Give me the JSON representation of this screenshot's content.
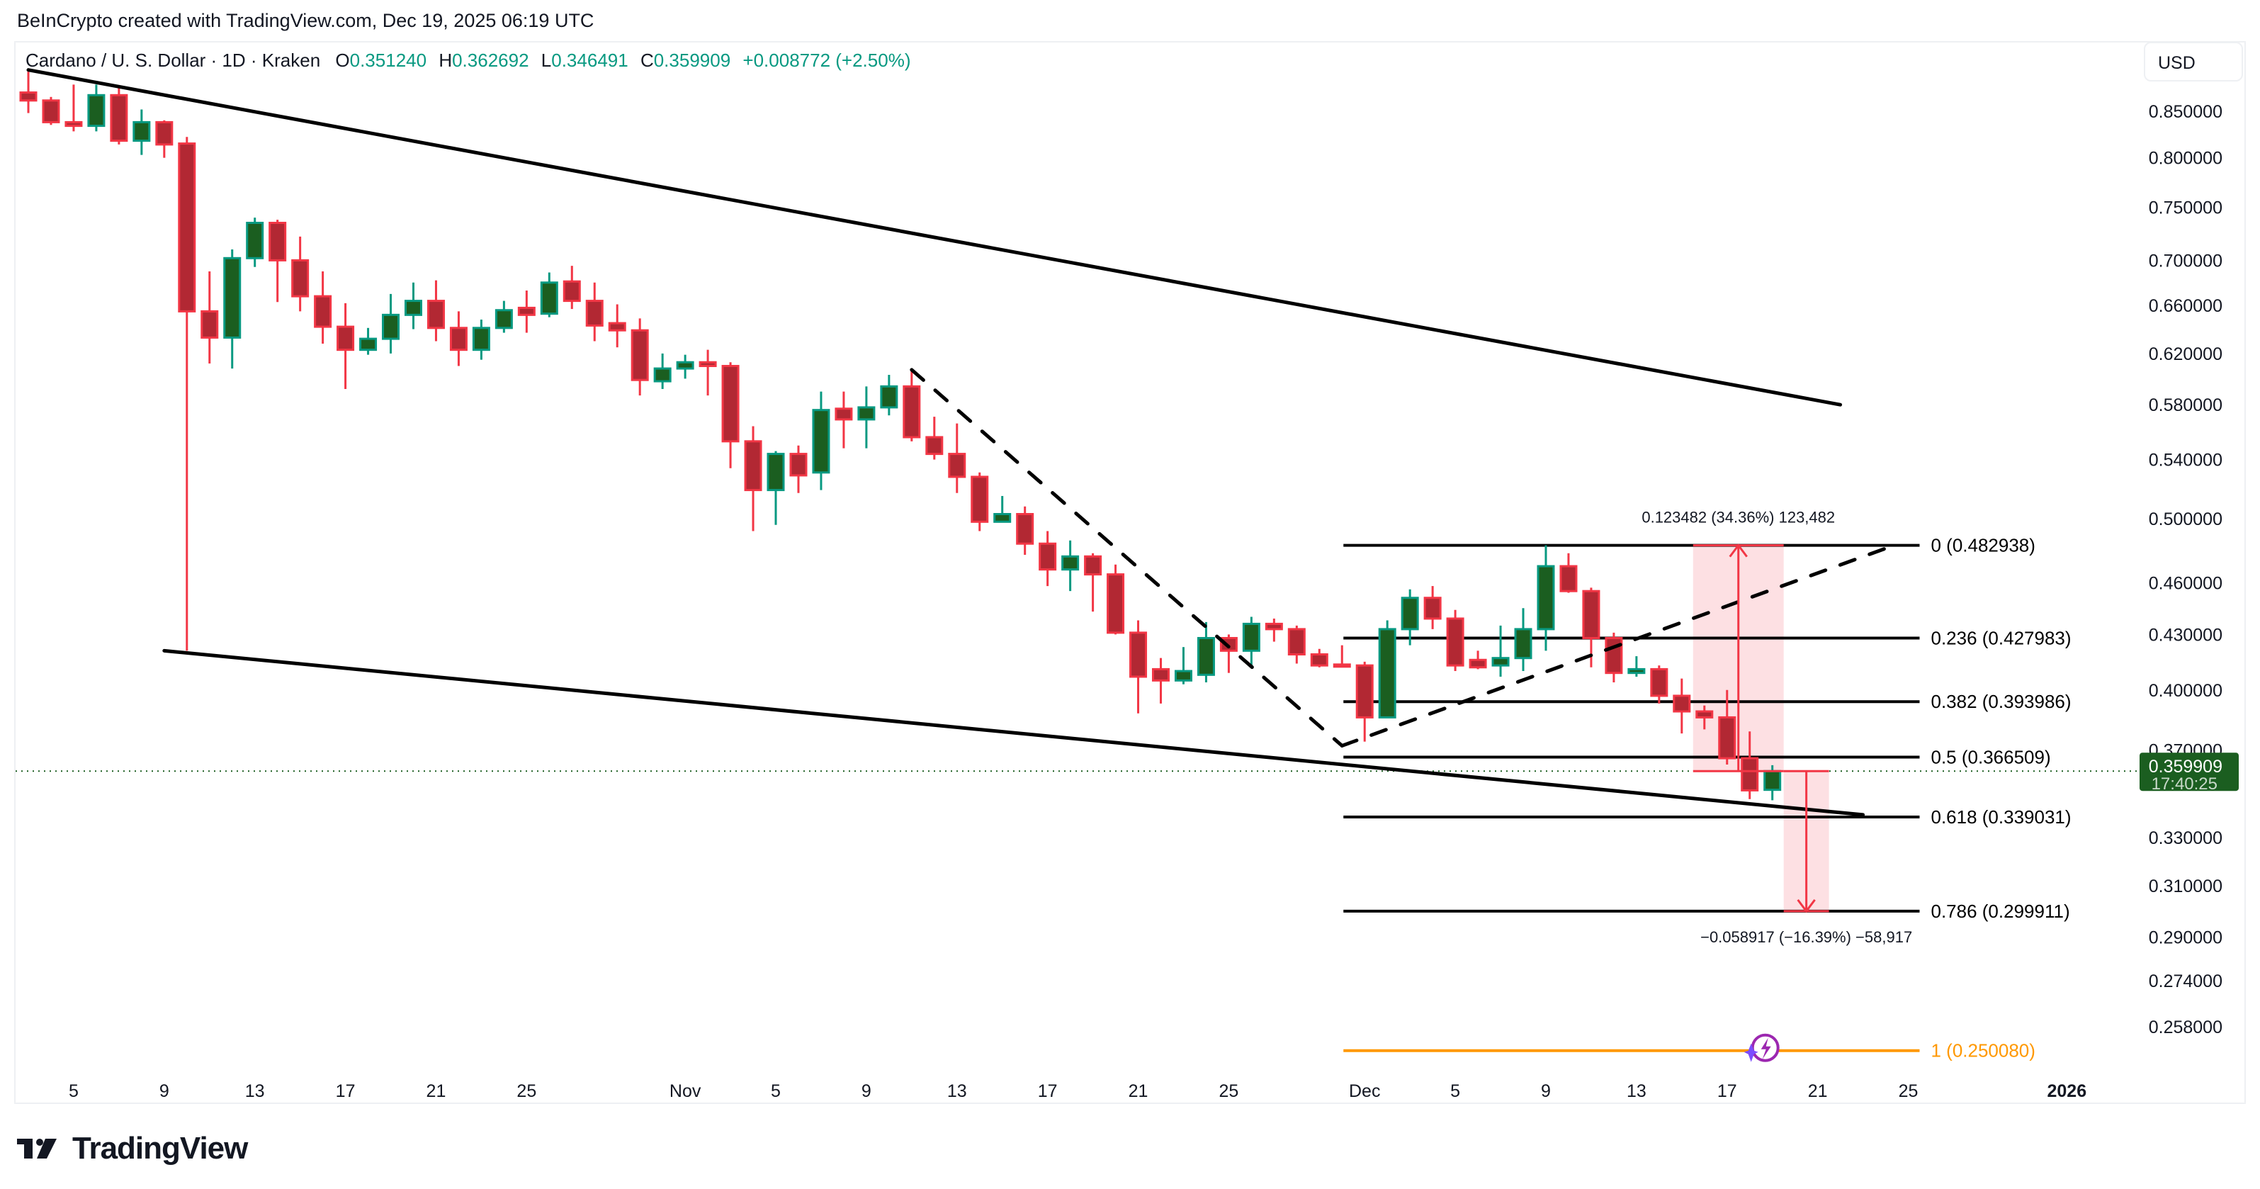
{
  "caption": "BeInCrypto created with TradingView.com, Dec 19, 2025 06:19 UTC",
  "legend": {
    "symbol": "Cardano / U. S. Dollar · 1D · Kraken",
    "o_label": "O",
    "o": "0.351240",
    "h_label": "H",
    "h": "0.362692",
    "l_label": "L",
    "l": "0.346491",
    "c_label": "C",
    "c": "0.359909",
    "change": "+0.008772 (+2.50%)"
  },
  "currency_button": "USD",
  "price_axis": {
    "ticks": [
      "0.850000",
      "0.800000",
      "0.750000",
      "0.700000",
      "0.660000",
      "0.620000",
      "0.580000",
      "0.540000",
      "0.500000",
      "0.460000",
      "0.430000",
      "0.400000",
      "0.370000",
      "0.330000",
      "0.310000",
      "0.290000",
      "0.274000",
      "0.258000"
    ],
    "current_price": "0.359909",
    "countdown": "17:40:25"
  },
  "time_axis": {
    "ticks": [
      {
        "label": "5",
        "day": 2
      },
      {
        "label": "9",
        "day": 6
      },
      {
        "label": "13",
        "day": 10
      },
      {
        "label": "17",
        "day": 14
      },
      {
        "label": "21",
        "day": 18
      },
      {
        "label": "25",
        "day": 22
      },
      {
        "label": "Nov",
        "day": 29
      },
      {
        "label": "5",
        "day": 33
      },
      {
        "label": "9",
        "day": 37
      },
      {
        "label": "13",
        "day": 41
      },
      {
        "label": "17",
        "day": 45
      },
      {
        "label": "21",
        "day": 49
      },
      {
        "label": "25",
        "day": 53
      },
      {
        "label": "Dec",
        "day": 59
      },
      {
        "label": "5",
        "day": 63
      },
      {
        "label": "9",
        "day": 67
      },
      {
        "label": "13",
        "day": 71
      },
      {
        "label": "17",
        "day": 75
      },
      {
        "label": "21",
        "day": 79
      },
      {
        "label": "25",
        "day": 83
      },
      {
        "label": "2026",
        "day": 90,
        "bold": true
      }
    ]
  },
  "fib_levels": [
    {
      "ratio": "0",
      "price": 0.482938,
      "label": "0 (0.482938)",
      "color": "#000000"
    },
    {
      "ratio": "0.236",
      "price": 0.427983,
      "label": "0.236 (0.427983)",
      "color": "#000000"
    },
    {
      "ratio": "0.382",
      "price": 0.393986,
      "label": "0.382 (0.393986)",
      "color": "#000000"
    },
    {
      "ratio": "0.5",
      "price": 0.366509,
      "label": "0.5 (0.366509)",
      "color": "#000000"
    },
    {
      "ratio": "0.618",
      "price": 0.339031,
      "label": "0.618 (0.339031)",
      "color": "#000000"
    },
    {
      "ratio": "0.786",
      "price": 0.299911,
      "label": "0.786 (0.299911)",
      "color": "#000000"
    },
    {
      "ratio": "1",
      "price": 0.25008,
      "label": "1 (0.250080)",
      "color": "#ff9800"
    }
  ],
  "measures": [
    {
      "label": "0.123482 (34.36%) 123,482",
      "from": 0.359909,
      "to": 0.482938
    },
    {
      "label": "−0.058917 (−16.39%) −58,917",
      "from": 0.359909,
      "to": 0.299911
    }
  ],
  "colors": {
    "up_body": "#1b5e20",
    "up_border": "#089981",
    "down_body": "#b22833",
    "down_border": "#f23645",
    "fib_one": "#ff9800",
    "measure_fill": "#fde0e3",
    "measure_line": "#f23645",
    "price_tag": "#1b5e20"
  },
  "branding": {
    "logo_text": "TradingView"
  },
  "chart_data": {
    "type": "candlestick",
    "title": "Cardano / U. S. Dollar · 1D · Kraken",
    "xlabel": "",
    "ylabel": "USD",
    "y_scale": "log",
    "ylim": [
      0.245,
      0.9
    ],
    "grid": false,
    "start_date": "2025-10-03",
    "candles": [
      {
        "d": "Oct 3",
        "o": 0.871,
        "h": 0.895,
        "l": 0.848,
        "c": 0.862
      },
      {
        "d": "Oct 4",
        "o": 0.862,
        "h": 0.866,
        "l": 0.835,
        "c": 0.838
      },
      {
        "d": "Oct 5",
        "o": 0.838,
        "h": 0.88,
        "l": 0.828,
        "c": 0.834
      },
      {
        "d": "Oct 6",
        "o": 0.834,
        "h": 0.88,
        "l": 0.828,
        "c": 0.868
      },
      {
        "d": "Oct 7",
        "o": 0.868,
        "h": 0.878,
        "l": 0.814,
        "c": 0.818
      },
      {
        "d": "Oct 8",
        "o": 0.818,
        "h": 0.852,
        "l": 0.803,
        "c": 0.838
      },
      {
        "d": "Oct 9",
        "o": 0.838,
        "h": 0.84,
        "l": 0.8,
        "c": 0.814
      },
      {
        "d": "Oct 10",
        "o": 0.815,
        "h": 0.822,
        "l": 0.421,
        "c": 0.655
      },
      {
        "d": "Oct 11",
        "o": 0.655,
        "h": 0.69,
        "l": 0.612,
        "c": 0.633
      },
      {
        "d": "Oct 12",
        "o": 0.633,
        "h": 0.71,
        "l": 0.608,
        "c": 0.702
      },
      {
        "d": "Oct 13",
        "o": 0.702,
        "h": 0.74,
        "l": 0.694,
        "c": 0.735
      },
      {
        "d": "Oct 14",
        "o": 0.735,
        "h": 0.738,
        "l": 0.663,
        "c": 0.7
      },
      {
        "d": "Oct 15",
        "o": 0.7,
        "h": 0.722,
        "l": 0.655,
        "c": 0.668
      },
      {
        "d": "Oct 16",
        "o": 0.668,
        "h": 0.69,
        "l": 0.628,
        "c": 0.642
      },
      {
        "d": "Oct 17",
        "o": 0.642,
        "h": 0.662,
        "l": 0.592,
        "c": 0.623
      },
      {
        "d": "Oct 18",
        "o": 0.623,
        "h": 0.641,
        "l": 0.619,
        "c": 0.632
      },
      {
        "d": "Oct 19",
        "o": 0.632,
        "h": 0.67,
        "l": 0.62,
        "c": 0.652
      },
      {
        "d": "Oct 20",
        "o": 0.652,
        "h": 0.68,
        "l": 0.64,
        "c": 0.664
      },
      {
        "d": "Oct 21",
        "o": 0.664,
        "h": 0.682,
        "l": 0.63,
        "c": 0.641
      },
      {
        "d": "Oct 22",
        "o": 0.641,
        "h": 0.655,
        "l": 0.61,
        "c": 0.623
      },
      {
        "d": "Oct 23",
        "o": 0.623,
        "h": 0.648,
        "l": 0.615,
        "c": 0.641
      },
      {
        "d": "Oct 24",
        "o": 0.641,
        "h": 0.664,
        "l": 0.637,
        "c": 0.656
      },
      {
        "d": "Oct 25",
        "o": 0.658,
        "h": 0.673,
        "l": 0.637,
        "c": 0.652
      },
      {
        "d": "Oct 26",
        "o": 0.653,
        "h": 0.689,
        "l": 0.65,
        "c": 0.68
      },
      {
        "d": "Oct 27",
        "o": 0.681,
        "h": 0.695,
        "l": 0.657,
        "c": 0.664
      },
      {
        "d": "Oct 28",
        "o": 0.664,
        "h": 0.68,
        "l": 0.63,
        "c": 0.643
      },
      {
        "d": "Oct 29",
        "o": 0.645,
        "h": 0.661,
        "l": 0.625,
        "c": 0.639
      },
      {
        "d": "Oct 30",
        "o": 0.639,
        "h": 0.649,
        "l": 0.587,
        "c": 0.599
      },
      {
        "d": "Oct 31",
        "o": 0.598,
        "h": 0.62,
        "l": 0.592,
        "c": 0.608
      },
      {
        "d": "Nov 1",
        "o": 0.608,
        "h": 0.619,
        "l": 0.6,
        "c": 0.613
      },
      {
        "d": "Nov 2",
        "o": 0.613,
        "h": 0.623,
        "l": 0.587,
        "c": 0.61
      },
      {
        "d": "Nov 3",
        "o": 0.61,
        "h": 0.613,
        "l": 0.534,
        "c": 0.553
      },
      {
        "d": "Nov 4",
        "o": 0.553,
        "h": 0.564,
        "l": 0.492,
        "c": 0.519
      },
      {
        "d": "Nov 5",
        "o": 0.519,
        "h": 0.546,
        "l": 0.496,
        "c": 0.544
      },
      {
        "d": "Nov 6",
        "o": 0.544,
        "h": 0.55,
        "l": 0.517,
        "c": 0.529
      },
      {
        "d": "Nov 7",
        "o": 0.531,
        "h": 0.59,
        "l": 0.519,
        "c": 0.576
      },
      {
        "d": "Nov 8",
        "o": 0.577,
        "h": 0.59,
        "l": 0.548,
        "c": 0.569
      },
      {
        "d": "Nov 9",
        "o": 0.569,
        "h": 0.594,
        "l": 0.548,
        "c": 0.578
      },
      {
        "d": "Nov 10",
        "o": 0.578,
        "h": 0.603,
        "l": 0.572,
        "c": 0.594
      },
      {
        "d": "Nov 11",
        "o": 0.594,
        "h": 0.607,
        "l": 0.553,
        "c": 0.556
      },
      {
        "d": "Nov 12",
        "o": 0.556,
        "h": 0.571,
        "l": 0.54,
        "c": 0.544
      },
      {
        "d": "Nov 13",
        "o": 0.544,
        "h": 0.566,
        "l": 0.517,
        "c": 0.528
      },
      {
        "d": "Nov 14",
        "o": 0.528,
        "h": 0.531,
        "l": 0.492,
        "c": 0.498
      },
      {
        "d": "Nov 15",
        "o": 0.498,
        "h": 0.515,
        "l": 0.498,
        "c": 0.503
      },
      {
        "d": "Nov 16",
        "o": 0.503,
        "h": 0.508,
        "l": 0.477,
        "c": 0.484
      },
      {
        "d": "Nov 17",
        "o": 0.484,
        "h": 0.492,
        "l": 0.458,
        "c": 0.468
      },
      {
        "d": "Nov 18",
        "o": 0.468,
        "h": 0.486,
        "l": 0.455,
        "c": 0.476
      },
      {
        "d": "Nov 19",
        "o": 0.476,
        "h": 0.478,
        "l": 0.443,
        "c": 0.465
      },
      {
        "d": "Nov 20",
        "o": 0.465,
        "h": 0.471,
        "l": 0.43,
        "c": 0.431
      },
      {
        "d": "Nov 21",
        "o": 0.431,
        "h": 0.438,
        "l": 0.388,
        "c": 0.407
      },
      {
        "d": "Nov 22",
        "o": 0.411,
        "h": 0.417,
        "l": 0.393,
        "c": 0.405
      },
      {
        "d": "Nov 23",
        "o": 0.405,
        "h": 0.423,
        "l": 0.403,
        "c": 0.41
      },
      {
        "d": "Nov 24",
        "o": 0.408,
        "h": 0.437,
        "l": 0.404,
        "c": 0.428
      },
      {
        "d": "Nov 25",
        "o": 0.428,
        "h": 0.43,
        "l": 0.409,
        "c": 0.421
      },
      {
        "d": "Nov 26",
        "o": 0.421,
        "h": 0.44,
        "l": 0.412,
        "c": 0.436
      },
      {
        "d": "Nov 27",
        "o": 0.436,
        "h": 0.439,
        "l": 0.426,
        "c": 0.433
      },
      {
        "d": "Nov 28",
        "o": 0.433,
        "h": 0.435,
        "l": 0.414,
        "c": 0.419
      },
      {
        "d": "Nov 29",
        "o": 0.419,
        "h": 0.422,
        "l": 0.412,
        "c": 0.413
      },
      {
        "d": "Nov 30",
        "o": 0.4135,
        "h": 0.424,
        "l": 0.412,
        "c": 0.4125
      },
      {
        "d": "Dec 1",
        "o": 0.413,
        "h": 0.415,
        "l": 0.374,
        "c": 0.386
      },
      {
        "d": "Dec 2",
        "o": 0.386,
        "h": 0.438,
        "l": 0.386,
        "c": 0.433
      },
      {
        "d": "Dec 3",
        "o": 0.433,
        "h": 0.456,
        "l": 0.424,
        "c": 0.451
      },
      {
        "d": "Dec 4",
        "o": 0.451,
        "h": 0.458,
        "l": 0.433,
        "c": 0.439
      },
      {
        "d": "Dec 5",
        "o": 0.439,
        "h": 0.444,
        "l": 0.41,
        "c": 0.413
      },
      {
        "d": "Dec 6",
        "o": 0.416,
        "h": 0.421,
        "l": 0.411,
        "c": 0.412
      },
      {
        "d": "Dec 7",
        "o": 0.413,
        "h": 0.435,
        "l": 0.407,
        "c": 0.417
      },
      {
        "d": "Dec 8",
        "o": 0.417,
        "h": 0.445,
        "l": 0.41,
        "c": 0.433
      },
      {
        "d": "Dec 9",
        "o": 0.433,
        "h": 0.483,
        "l": 0.421,
        "c": 0.47
      },
      {
        "d": "Dec 10",
        "o": 0.47,
        "h": 0.478,
        "l": 0.454,
        "c": 0.455
      },
      {
        "d": "Dec 11",
        "o": 0.455,
        "h": 0.457,
        "l": 0.412,
        "c": 0.428
      },
      {
        "d": "Dec 12",
        "o": 0.428,
        "h": 0.431,
        "l": 0.404,
        "c": 0.409
      },
      {
        "d": "Dec 13",
        "o": 0.409,
        "h": 0.418,
        "l": 0.407,
        "c": 0.411
      },
      {
        "d": "Dec 14",
        "o": 0.411,
        "h": 0.413,
        "l": 0.393,
        "c": 0.397
      },
      {
        "d": "Dec 15",
        "o": 0.397,
        "h": 0.406,
        "l": 0.378,
        "c": 0.389
      },
      {
        "d": "Dec 16",
        "o": 0.389,
        "h": 0.392,
        "l": 0.38,
        "c": 0.386
      },
      {
        "d": "Dec 17",
        "o": 0.386,
        "h": 0.4,
        "l": 0.363,
        "c": 0.366
      },
      {
        "d": "Dec 18",
        "o": 0.366,
        "h": 0.379,
        "l": 0.347,
        "c": 0.351
      },
      {
        "d": "Dec 19",
        "o": 0.35124,
        "h": 0.362692,
        "l": 0.346491,
        "c": 0.359909
      }
    ],
    "trendlines": [
      {
        "name": "upper-channel",
        "style": "solid",
        "from": {
          "day": 0,
          "price": 0.897
        },
        "to": {
          "day": 80,
          "price": 0.58
        }
      },
      {
        "name": "lower-channel",
        "style": "solid",
        "from": {
          "day": 6,
          "price": 0.421
        },
        "to": {
          "day": 81,
          "price": 0.34
        }
      },
      {
        "name": "descending-dashed",
        "style": "dashed",
        "from": {
          "day": 39,
          "price": 0.607
        },
        "to": {
          "day": 58,
          "price": 0.372
        }
      },
      {
        "name": "ascending-dashed",
        "style": "dashed",
        "from": {
          "day": 58,
          "price": 0.372
        },
        "to": {
          "day": 82,
          "price": 0.481
        }
      }
    ],
    "annotations": [
      "0.123482 (34.36%) 123,482",
      "−0.058917 (−16.39%) −58,917"
    ]
  }
}
